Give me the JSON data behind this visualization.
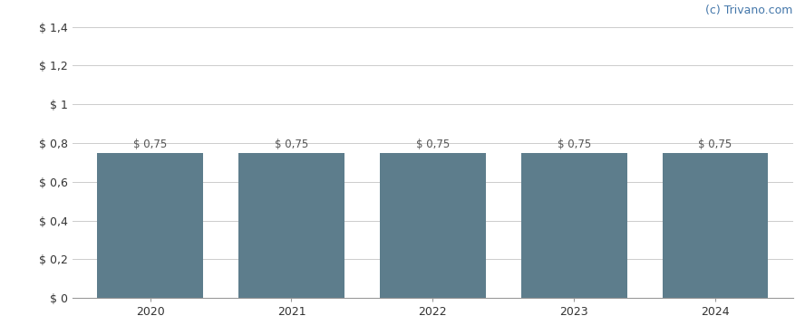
{
  "categories": [
    2020,
    2021,
    2022,
    2023,
    2024
  ],
  "values": [
    0.75,
    0.75,
    0.75,
    0.75,
    0.75
  ],
  "bar_color": "#5d7d8c",
  "bar_width": 0.75,
  "ylim": [
    0,
    1.4
  ],
  "yticks": [
    0,
    0.2,
    0.4,
    0.6,
    0.8,
    1.0,
    1.2,
    1.4
  ],
  "ytick_labels": [
    "$ 0",
    "$ 0,2",
    "$ 0,4",
    "$ 0,6",
    "$ 0,8",
    "$ 1",
    "$ 1,2",
    "$ 1,4"
  ],
  "annotation_template": "$ 0,75",
  "background_color": "#ffffff",
  "grid_color": "#cccccc",
  "watermark": "(c) Trivano.com",
  "watermark_color": "#4477aa",
  "annotation_color": "#555555",
  "annotation_fontsize": 8.5,
  "tick_fontsize": 9,
  "watermark_fontsize": 9,
  "xlim_left": -0.55,
  "xlim_right": 4.55
}
